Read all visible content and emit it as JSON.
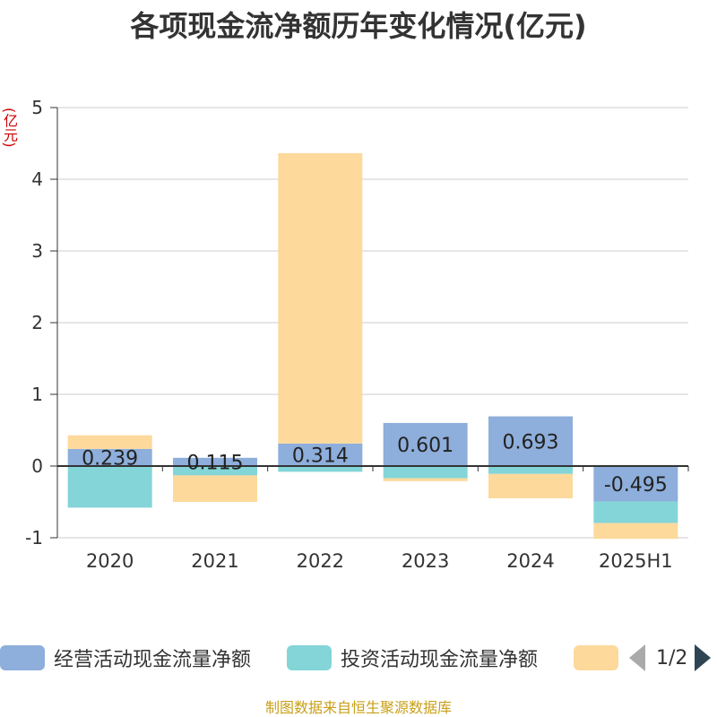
{
  "title": "各项现金流净额历年变化情况(亿元)",
  "unit_label": "(亿元)",
  "source": "制图数据来自恒生聚源数据库",
  "pager": "1/2",
  "colors": {
    "operating": "#8eaedb",
    "investing": "#83d5d8",
    "financing": "#fdd99b",
    "axis": "#333333",
    "grid": "#cccccc"
  },
  "chart_data": {
    "type": "bar",
    "stacked": true,
    "categories": [
      "2020",
      "2021",
      "2022",
      "2023",
      "2024",
      "2025H1"
    ],
    "ylim": [
      -1,
      5
    ],
    "yticks": [
      -1,
      0,
      1,
      2,
      3,
      4,
      5
    ],
    "grid": true,
    "legend_position": "bottom",
    "series": [
      {
        "name": "经营活动现金流量净额",
        "color_key": "operating",
        "values": [
          0.239,
          0.115,
          0.314,
          0.601,
          0.693,
          -0.495
        ],
        "labels": [
          "0.239",
          "0.115",
          "0.314",
          "0.601",
          "0.693",
          "-0.495"
        ]
      },
      {
        "name": "投资活动现金流量净额",
        "color_key": "investing",
        "values": [
          -0.58,
          -0.13,
          -0.08,
          -0.17,
          -0.11,
          -0.3
        ]
      },
      {
        "name": "",
        "color_key": "financing",
        "values": [
          0.19,
          -0.37,
          4.05,
          -0.04,
          -0.34,
          -0.22
        ]
      }
    ]
  }
}
